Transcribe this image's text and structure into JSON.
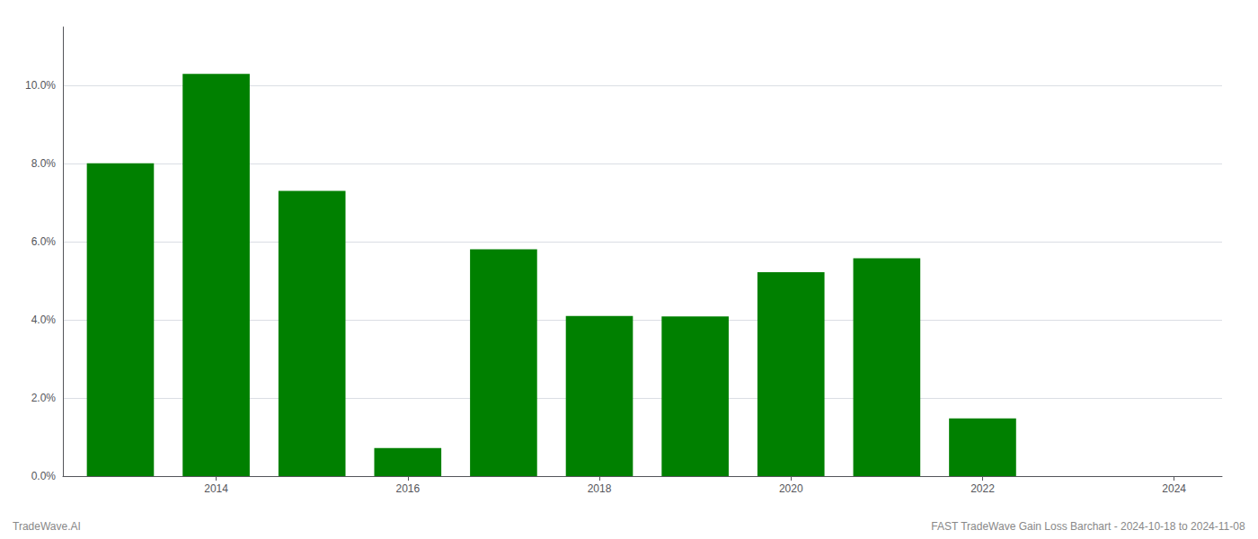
{
  "chart_data": {
    "type": "bar",
    "x": [
      2013,
      2014,
      2015,
      2016,
      2017,
      2018,
      2019,
      2020,
      2021,
      2022,
      2023
    ],
    "values": [
      0.0801,
      0.103,
      0.073,
      0.0072,
      0.0581,
      0.041,
      0.0409,
      0.0522,
      0.0558,
      0.0148,
      0.0
    ],
    "color": "#008000",
    "xlim": [
      2012.4,
      2024.5
    ],
    "xticks": [
      2014,
      2016,
      2018,
      2020,
      2022,
      2024
    ],
    "ylim": [
      0,
      0.115
    ],
    "yticks": [
      {
        "value": 0.0,
        "label": "0.0%"
      },
      {
        "value": 0.02,
        "label": "2.0%"
      },
      {
        "value": 0.04,
        "label": "4.0%"
      },
      {
        "value": 0.06,
        "label": "6.0%"
      },
      {
        "value": 0.08,
        "label": "8.0%"
      },
      {
        "value": 0.1,
        "label": "10.0%"
      }
    ],
    "grid": true,
    "annotations": [
      "TradeWave.AI",
      "FAST TradeWave Gain Loss Barchart - 2024-10-18 to 2024-11-08"
    ]
  }
}
